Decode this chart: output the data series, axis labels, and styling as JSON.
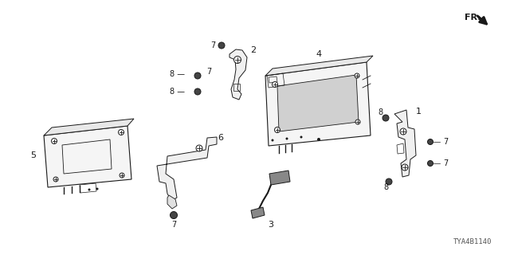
{
  "bg_color": "#ffffff",
  "line_color": "#1a1a1a",
  "diagram_id": "TYA4B1140",
  "fr_label": "FR.",
  "figsize": [
    6.4,
    3.2
  ],
  "dpi": 100,
  "parts": [
    "1",
    "2",
    "3",
    "4",
    "5",
    "6",
    "7",
    "8"
  ]
}
